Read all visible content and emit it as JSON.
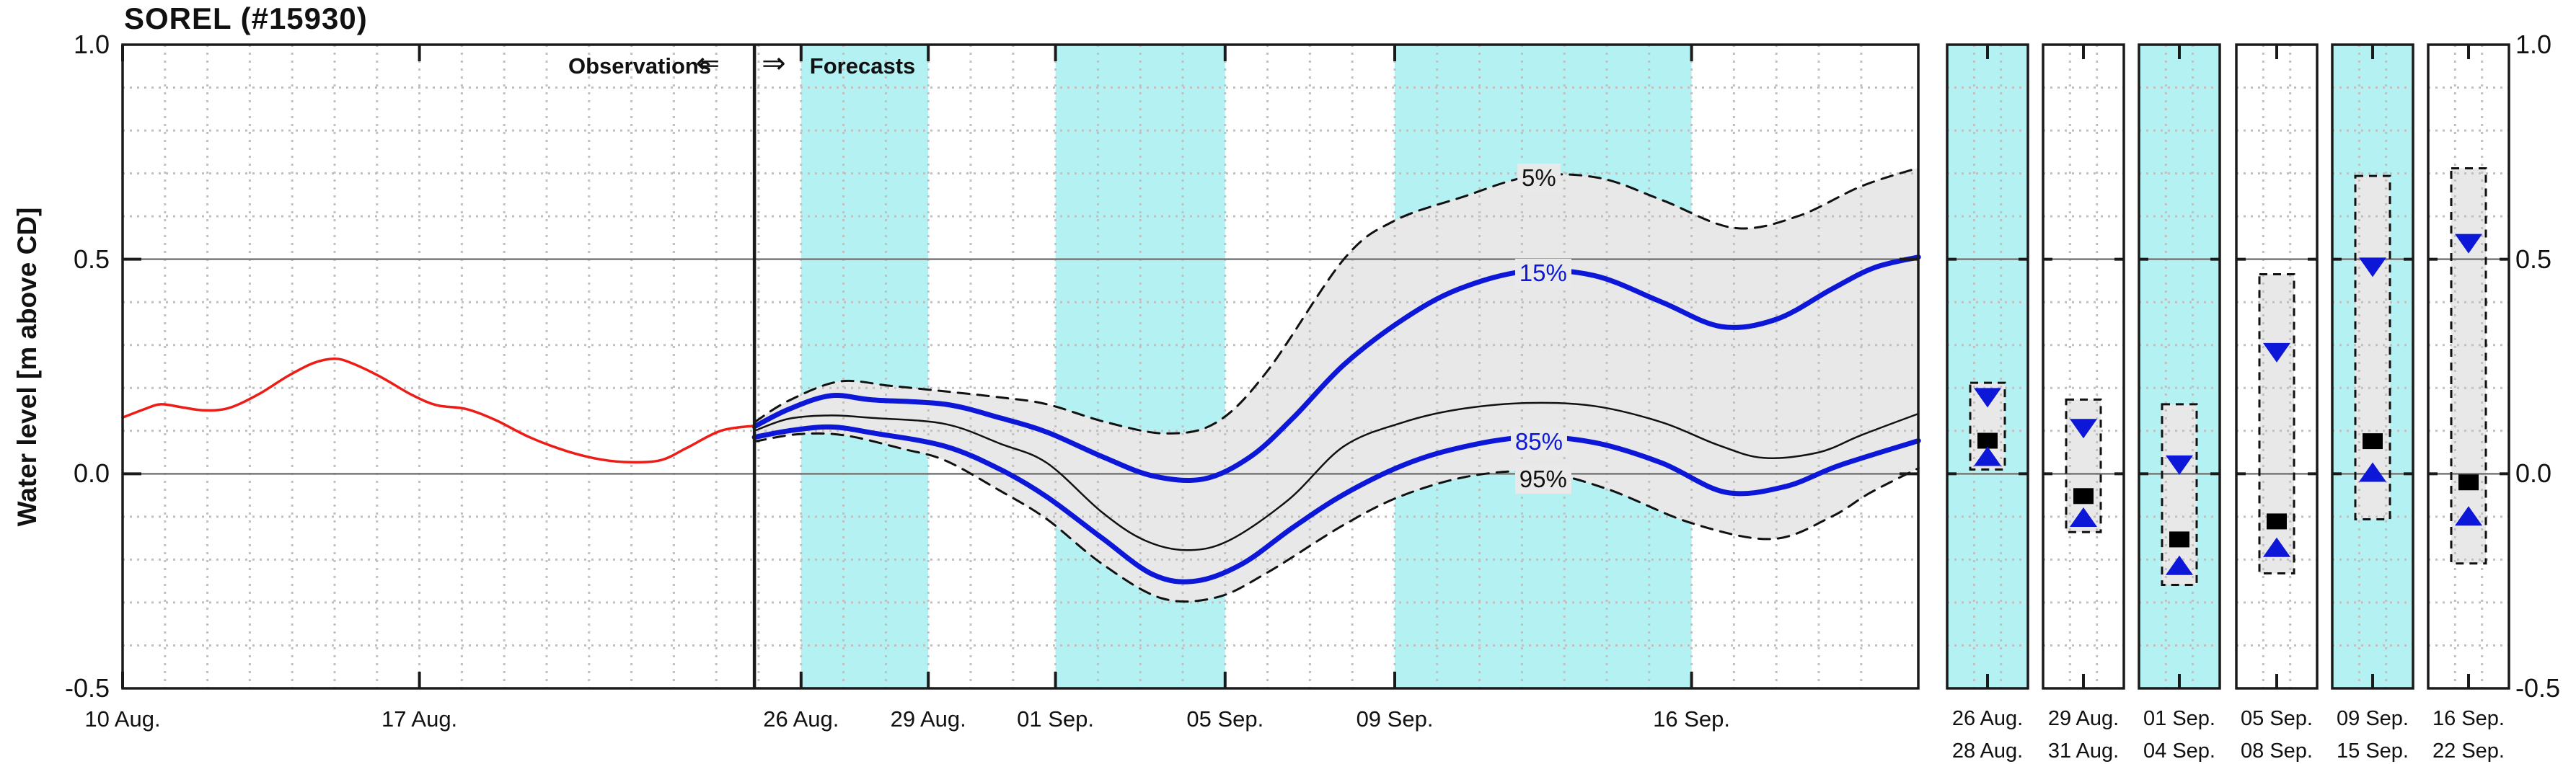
{
  "title": "SOREL (#15930)",
  "y_axis": {
    "label": "Water level [m above CD]",
    "ticks": [
      "1.0",
      "0.5",
      "0.0",
      "-0.5"
    ],
    "tick_values": [
      1.0,
      0.5,
      0.0,
      -0.5
    ]
  },
  "annotations": {
    "observations": "Observations",
    "forecasts": "Forecasts",
    "left_arrow": "⇐",
    "right_arrow": "⇒"
  },
  "curve_labels": [
    {
      "text": "5%",
      "day": 33.4,
      "value": 0.69,
      "color": "#111111"
    },
    {
      "text": "15%",
      "day": 33.5,
      "value": 0.468,
      "color": "#0d17d8"
    },
    {
      "text": "85%",
      "day": 33.4,
      "value": 0.074,
      "color": "#0d17d8"
    },
    {
      "text": "95%",
      "day": 33.5,
      "value": -0.013,
      "color": "#111111"
    }
  ],
  "colors": {
    "observation_red": "#ee1c16",
    "percentile_blue": "#0d17d8",
    "median_black": "#111111",
    "band_gray": "#e8e8e8",
    "weekend_cyan": "#b4f1f3",
    "grid_gray": "#c0c0c0",
    "zero_line_gray": "#787878",
    "axis_black": "#1a1a1a"
  },
  "chart_data": {
    "type": "line",
    "title": "SOREL (#15930)",
    "ylabel": "Water level [m above CD]",
    "ylim": [
      -0.5,
      1.0
    ],
    "xlim_days": [
      0,
      42.35
    ],
    "x_unit": "days since 10 Aug.",
    "grid": "minor dotted every 0.1 and every day; solid gray lines at 0.0 and 0.5",
    "legend_position": "inline curve labels",
    "boundary_day": 14.9,
    "weekend_bands_days": [
      [
        16,
        19
      ],
      [
        22,
        26
      ],
      [
        30,
        37
      ]
    ],
    "x_ticks": [
      {
        "label": "10 Aug.",
        "day": 0
      },
      {
        "label": "17 Aug.",
        "day": 7
      },
      {
        "label": "26 Aug.",
        "day": 16
      },
      {
        "label": "29 Aug.",
        "day": 19
      },
      {
        "label": "01 Sep.",
        "day": 22
      },
      {
        "label": "05 Sep.",
        "day": 26
      },
      {
        "label": "09 Sep.",
        "day": 30
      },
      {
        "label": "16 Sep.",
        "day": 37
      }
    ],
    "band": {
      "between": [
        "5%",
        "95%"
      ],
      "color": "#e8e8e8"
    },
    "series": [
      {
        "name": "Observations",
        "style": "solid",
        "color": "#ee1c16",
        "width": 3.5,
        "points": [
          [
            0,
            0.131
          ],
          [
            0.5,
            0.15
          ],
          [
            0.9,
            0.162
          ],
          [
            1.4,
            0.155
          ],
          [
            1.9,
            0.148
          ],
          [
            2.5,
            0.153
          ],
          [
            3.2,
            0.185
          ],
          [
            3.9,
            0.228
          ],
          [
            4.5,
            0.258
          ],
          [
            5.0,
            0.268
          ],
          [
            5.4,
            0.258
          ],
          [
            6.1,
            0.225
          ],
          [
            6.8,
            0.185
          ],
          [
            7.4,
            0.16
          ],
          [
            8.1,
            0.151
          ],
          [
            8.8,
            0.125
          ],
          [
            9.6,
            0.085
          ],
          [
            10.5,
            0.052
          ],
          [
            11.3,
            0.033
          ],
          [
            12.0,
            0.027
          ],
          [
            12.7,
            0.032
          ],
          [
            13.3,
            0.06
          ],
          [
            14.1,
            0.1
          ],
          [
            14.9,
            0.112
          ]
        ]
      },
      {
        "name": "5%",
        "style": "dashed",
        "color": "#111111",
        "width": 3,
        "points": [
          [
            14.9,
            0.12
          ],
          [
            15.7,
            0.17
          ],
          [
            16.9,
            0.215
          ],
          [
            18.1,
            0.205
          ],
          [
            19.4,
            0.192
          ],
          [
            20.7,
            0.178
          ],
          [
            21.8,
            0.162
          ],
          [
            23.2,
            0.12
          ],
          [
            24.6,
            0.094
          ],
          [
            25.8,
            0.12
          ],
          [
            27.0,
            0.24
          ],
          [
            28.8,
            0.5
          ],
          [
            30.0,
            0.59
          ],
          [
            31.6,
            0.645
          ],
          [
            33.2,
            0.693
          ],
          [
            34.8,
            0.69
          ],
          [
            36.3,
            0.638
          ],
          [
            38.0,
            0.573
          ],
          [
            39.5,
            0.6
          ],
          [
            41.0,
            0.67
          ],
          [
            42.35,
            0.713
          ]
        ]
      },
      {
        "name": "15%",
        "style": "solid",
        "color": "#0d17d8",
        "width": 7,
        "points": [
          [
            14.9,
            0.11
          ],
          [
            15.7,
            0.15
          ],
          [
            16.7,
            0.182
          ],
          [
            17.7,
            0.172
          ],
          [
            19.4,
            0.162
          ],
          [
            20.7,
            0.13
          ],
          [
            21.8,
            0.097
          ],
          [
            23.1,
            0.04
          ],
          [
            24.3,
            -0.005
          ],
          [
            25.5,
            -0.012
          ],
          [
            26.6,
            0.04
          ],
          [
            27.6,
            0.13
          ],
          [
            28.8,
            0.254
          ],
          [
            30.2,
            0.36
          ],
          [
            31.5,
            0.43
          ],
          [
            33.1,
            0.472
          ],
          [
            34.7,
            0.462
          ],
          [
            36.3,
            0.4
          ],
          [
            37.7,
            0.343
          ],
          [
            39.0,
            0.36
          ],
          [
            40.3,
            0.43
          ],
          [
            41.3,
            0.48
          ],
          [
            42.35,
            0.505
          ]
        ]
      },
      {
        "name": "Median",
        "style": "solid",
        "color": "#111111",
        "width": 2.5,
        "points": [
          [
            14.9,
            0.1
          ],
          [
            15.7,
            0.128
          ],
          [
            16.7,
            0.136
          ],
          [
            17.7,
            0.13
          ],
          [
            19.4,
            0.116
          ],
          [
            20.7,
            0.07
          ],
          [
            21.8,
            0.025
          ],
          [
            23.1,
            -0.09
          ],
          [
            24.1,
            -0.155
          ],
          [
            25.1,
            -0.178
          ],
          [
            26.1,
            -0.155
          ],
          [
            27.5,
            -0.06
          ],
          [
            28.8,
            0.064
          ],
          [
            30.2,
            0.12
          ],
          [
            31.5,
            0.15
          ],
          [
            33.1,
            0.165
          ],
          [
            34.7,
            0.158
          ],
          [
            36.3,
            0.12
          ],
          [
            37.6,
            0.068
          ],
          [
            38.7,
            0.037
          ],
          [
            40.0,
            0.05
          ],
          [
            41.0,
            0.09
          ],
          [
            42.35,
            0.14
          ]
        ]
      },
      {
        "name": "85%",
        "style": "solid",
        "color": "#0d17d8",
        "width": 7,
        "points": [
          [
            14.9,
            0.085
          ],
          [
            15.7,
            0.1
          ],
          [
            16.7,
            0.109
          ],
          [
            17.7,
            0.095
          ],
          [
            19.4,
            0.064
          ],
          [
            20.7,
            0.01
          ],
          [
            21.8,
            -0.054
          ],
          [
            23.1,
            -0.15
          ],
          [
            24.3,
            -0.235
          ],
          [
            25.3,
            -0.25
          ],
          [
            26.4,
            -0.21
          ],
          [
            27.6,
            -0.125
          ],
          [
            28.8,
            -0.048
          ],
          [
            30.2,
            0.02
          ],
          [
            31.5,
            0.06
          ],
          [
            33.1,
            0.085
          ],
          [
            34.7,
            0.073
          ],
          [
            36.3,
            0.025
          ],
          [
            37.8,
            -0.043
          ],
          [
            39.2,
            -0.03
          ],
          [
            40.5,
            0.02
          ],
          [
            42.35,
            0.077
          ]
        ]
      },
      {
        "name": "95%",
        "style": "dashed",
        "color": "#111111",
        "width": 3,
        "points": [
          [
            14.9,
            0.075
          ],
          [
            15.9,
            0.092
          ],
          [
            17.0,
            0.09
          ],
          [
            18.4,
            0.058
          ],
          [
            19.4,
            0.031
          ],
          [
            20.7,
            -0.04
          ],
          [
            21.8,
            -0.106
          ],
          [
            23.1,
            -0.21
          ],
          [
            24.5,
            -0.29
          ],
          [
            25.8,
            -0.288
          ],
          [
            27.0,
            -0.23
          ],
          [
            28.8,
            -0.119
          ],
          [
            30.2,
            -0.05
          ],
          [
            31.8,
            -0.005
          ],
          [
            33.4,
            0.004
          ],
          [
            35.0,
            -0.035
          ],
          [
            37.0,
            -0.115
          ],
          [
            38.9,
            -0.152
          ],
          [
            40.3,
            -0.1
          ],
          [
            41.2,
            -0.045
          ],
          [
            42.35,
            0.013
          ]
        ]
      }
    ]
  },
  "panels": [
    {
      "start_label": "26 Aug.",
      "end_label": "28 Aug.",
      "weekend": true,
      "box_high": 0.212,
      "box_low": 0.01,
      "tri_down": 0.178,
      "median": 0.077,
      "tri_up": 0.04
    },
    {
      "start_label": "29 Aug.",
      "end_label": "31 Aug.",
      "weekend": false,
      "box_high": 0.173,
      "box_low": -0.136,
      "tri_down": 0.106,
      "median": -0.052,
      "tri_up": -0.102
    },
    {
      "start_label": "01 Sep.",
      "end_label": "04 Sep.",
      "weekend": true,
      "box_high": 0.162,
      "box_low": -0.259,
      "tri_down": 0.021,
      "median": -0.153,
      "tri_up": -0.214
    },
    {
      "start_label": "05 Sep.",
      "end_label": "08 Sep.",
      "weekend": false,
      "box_high": 0.465,
      "box_low": -0.232,
      "tri_down": 0.283,
      "median": -0.111,
      "tri_up": -0.172
    },
    {
      "start_label": "09 Sep.",
      "end_label": "15 Sep.",
      "weekend": true,
      "box_high": 0.694,
      "box_low": -0.106,
      "tri_down": 0.482,
      "median": 0.076,
      "tri_up": 0.003
    },
    {
      "start_label": "16 Sep.",
      "end_label": "22 Sep.",
      "weekend": false,
      "box_high": 0.712,
      "box_low": -0.209,
      "tri_down": 0.537,
      "median": -0.02,
      "tri_up": -0.099
    }
  ]
}
